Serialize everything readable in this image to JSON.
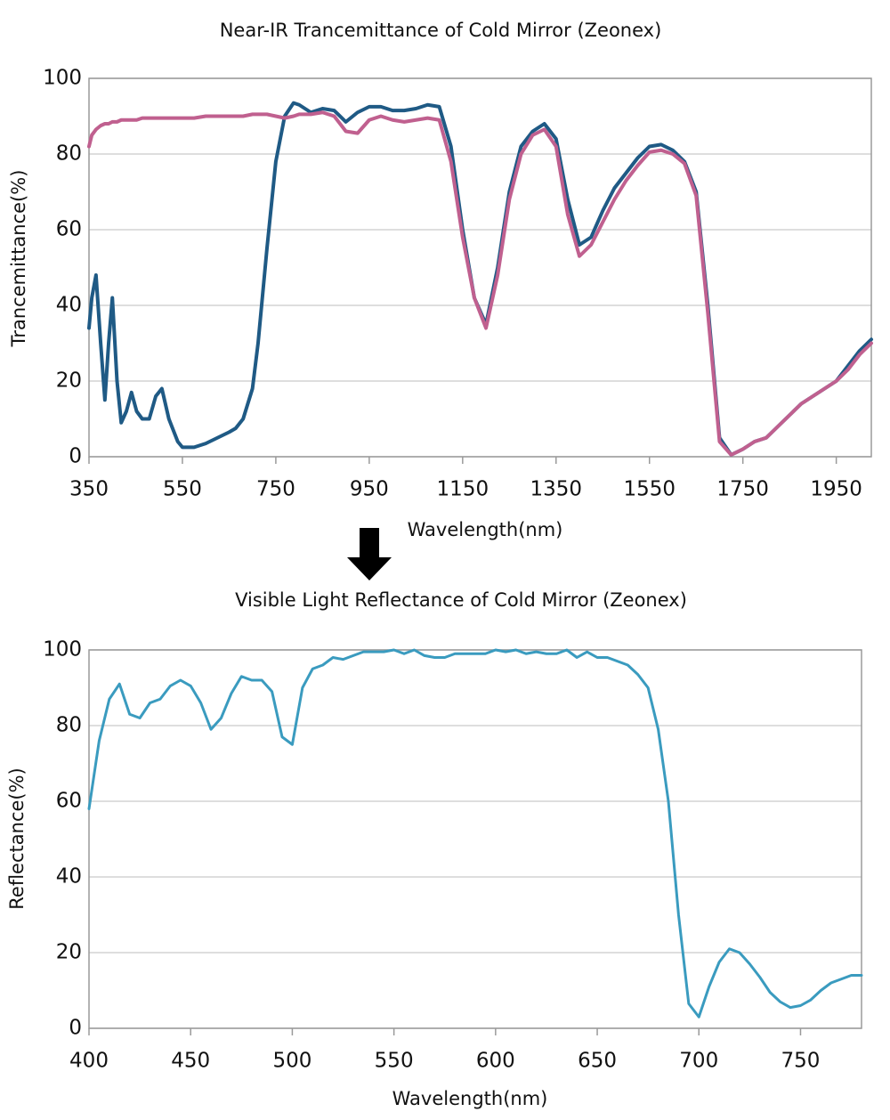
{
  "chart_data": [
    {
      "type": "line",
      "title": "Near-IR Trancemittance of Cold Mirror (Zeonex)",
      "x_label": "Wavelength(nm)",
      "y_label": "Trancemittance(%)",
      "xlim": [
        350,
        2025
      ],
      "ylim": [
        0,
        100
      ],
      "xticks": [
        350,
        550,
        750,
        950,
        1150,
        1350,
        1550,
        1750,
        1950
      ],
      "yticks": [
        0,
        20,
        40,
        60,
        80,
        100
      ],
      "grid": true,
      "x": [
        350,
        356,
        365,
        375,
        384,
        392,
        400,
        410,
        419,
        430,
        441,
        452,
        464,
        479,
        493,
        506,
        521,
        540,
        550,
        575,
        600,
        625,
        650,
        664,
        680,
        700,
        712,
        731,
        750,
        769,
        788,
        800,
        825,
        850,
        875,
        900,
        925,
        950,
        975,
        1000,
        1025,
        1050,
        1075,
        1100,
        1125,
        1150,
        1175,
        1200,
        1225,
        1250,
        1275,
        1300,
        1325,
        1350,
        1375,
        1400,
        1425,
        1450,
        1475,
        1500,
        1525,
        1550,
        1575,
        1600,
        1625,
        1650,
        1675,
        1700,
        1725,
        1750,
        1775,
        1800,
        1825,
        1850,
        1875,
        1900,
        1925,
        1950,
        1975,
        2000,
        2025
      ],
      "series": [
        {
          "color": "#1f5a85",
          "values": [
            34,
            42,
            48,
            30,
            15,
            30,
            42,
            20,
            9,
            12,
            17,
            12,
            10,
            10,
            16,
            18,
            10,
            4,
            2.5,
            2.5,
            3.5,
            5,
            6.5,
            7.5,
            10,
            18,
            30,
            55,
            78,
            90,
            93.5,
            93,
            91,
            92,
            91.5,
            88.5,
            91,
            92.5,
            92.5,
            91.5,
            91.5,
            92,
            93,
            92.5,
            82,
            60,
            42,
            35,
            50,
            70,
            82,
            86,
            88,
            84,
            68,
            56,
            58,
            65,
            71,
            75,
            79,
            82,
            82.5,
            81,
            78,
            70,
            40,
            5,
            0.5,
            2,
            4,
            5,
            8,
            11,
            14,
            16,
            18,
            20,
            24,
            28,
            31
          ]
        },
        {
          "color": "#c0608f",
          "values": [
            82,
            85,
            86.5,
            87.5,
            88,
            88,
            88.5,
            88.5,
            89,
            89,
            89,
            89,
            89.5,
            89.5,
            89.5,
            89.5,
            89.5,
            89.5,
            89.5,
            89.5,
            90,
            90,
            90,
            90,
            90,
            90.5,
            90.5,
            90.5,
            90,
            89.5,
            90,
            90.5,
            90.5,
            91,
            90,
            86,
            85.5,
            89,
            90,
            89,
            88.5,
            89,
            89.5,
            89,
            78,
            58,
            42,
            34,
            48,
            68,
            80,
            85,
            86.5,
            82,
            64,
            53,
            56,
            62,
            68,
            73,
            77,
            80.5,
            81,
            80,
            77.5,
            69,
            38,
            4,
            0.5,
            2,
            4,
            5,
            8,
            11,
            14,
            16,
            18,
            20,
            23,
            27,
            30
          ]
        }
      ]
    },
    {
      "type": "line",
      "title": "Visible Light Reflectance of Cold Mirror (Zeonex)",
      "x_label": "Wavelength(nm)",
      "y_label": "Reflectance(%)",
      "xlim": [
        400,
        780
      ],
      "ylim": [
        0,
        100
      ],
      "xticks": [
        400,
        450,
        500,
        550,
        600,
        650,
        700,
        750
      ],
      "yticks": [
        0,
        20,
        40,
        60,
        80,
        100
      ],
      "grid": true,
      "x": [
        400,
        405,
        410,
        415,
        420,
        425,
        430,
        435,
        440,
        445,
        450,
        455,
        460,
        465,
        470,
        475,
        480,
        485,
        490,
        495,
        500,
        505,
        510,
        515,
        520,
        525,
        530,
        535,
        540,
        545,
        550,
        555,
        560,
        565,
        570,
        575,
        580,
        585,
        590,
        595,
        600,
        605,
        610,
        615,
        620,
        625,
        630,
        635,
        640,
        645,
        650,
        655,
        660,
        665,
        670,
        675,
        680,
        685,
        690,
        695,
        700,
        705,
        710,
        715,
        720,
        725,
        730,
        735,
        740,
        745,
        750,
        755,
        760,
        765,
        770,
        775,
        780
      ],
      "series": [
        {
          "color": "#3a9bbf",
          "values": [
            58,
            76,
            87,
            91,
            83,
            82,
            86,
            87,
            90.5,
            92,
            90.5,
            86,
            79,
            82,
            88.5,
            93,
            92,
            92,
            89,
            77,
            75,
            90,
            95,
            96,
            98,
            97.5,
            98.5,
            99.5,
            99.5,
            99.5,
            100,
            99,
            100,
            98.5,
            98,
            98,
            99,
            99,
            99,
            99,
            100,
            99.5,
            100,
            99,
            99.5,
            99,
            99,
            100,
            98,
            99.5,
            98,
            98,
            97,
            96,
            93.5,
            90,
            79,
            60,
            30,
            6.5,
            3,
            11,
            17.5,
            21,
            20,
            17,
            13.5,
            9.5,
            7,
            5.5,
            6,
            7.5,
            10,
            12,
            13,
            14,
            14
          ]
        }
      ]
    }
  ]
}
